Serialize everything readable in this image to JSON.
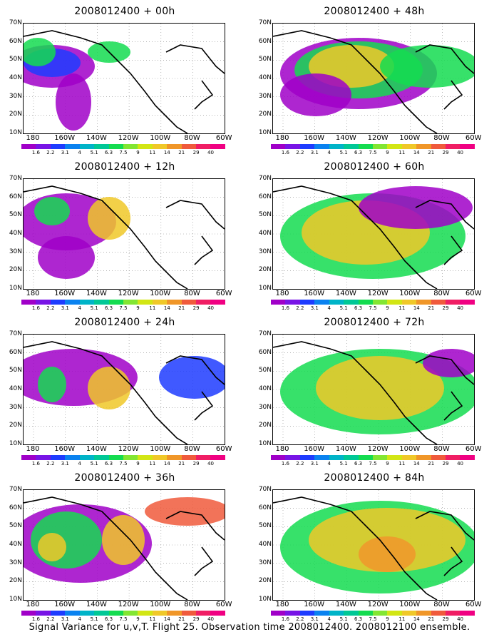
{
  "panels": [
    {
      "title": "2008012400 + 00h"
    },
    {
      "title": "2008012400 + 48h"
    },
    {
      "title": "2008012400 + 12h"
    },
    {
      "title": "2008012400 + 60h"
    },
    {
      "title": "2008012400 + 24h"
    },
    {
      "title": "2008012400 + 72h"
    },
    {
      "title": "2008012400 + 36h"
    },
    {
      "title": "2008012400 + 84h"
    }
  ],
  "axis": {
    "lat_labels": [
      "70N",
      "60N",
      "50N",
      "40N",
      "30N",
      "20N",
      "10N"
    ],
    "lon_labels": [
      "180",
      "160W",
      "140W",
      "120W",
      "100W",
      "80W",
      "60W"
    ]
  },
  "colorbar": {
    "labels": [
      "1.6",
      "2.2",
      "3.1",
      "4",
      "5.1",
      "6.3",
      "7.5",
      "9",
      "11",
      "14",
      "21",
      "29",
      "40"
    ],
    "colors": [
      "#a000c8",
      "#7814e6",
      "#1e3cff",
      "#0a82f0",
      "#00b4c8",
      "#00c896",
      "#14dc50",
      "#82e632",
      "#d2e614",
      "#f0c828",
      "#f09628",
      "#f05a3c",
      "#f01e64",
      "#f00082"
    ]
  },
  "footer": "Signal Variance for u,v,T. Flight 25. Observation time 2008012400. 2008012100 ensemble."
}
